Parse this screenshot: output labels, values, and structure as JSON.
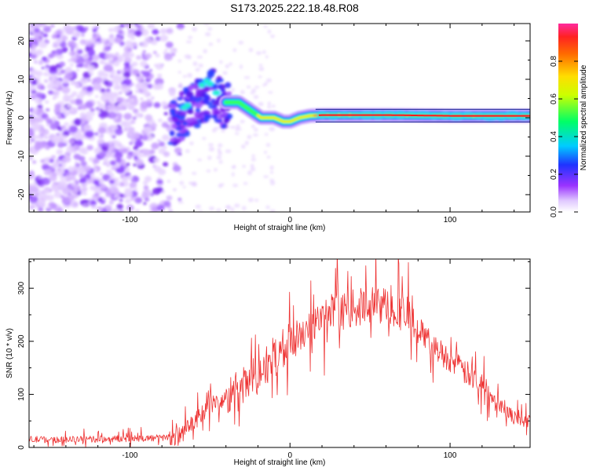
{
  "title": "S173.2025.222.18.48.R08",
  "chart_data": [
    {
      "type": "heatmap",
      "name": "spectrogram",
      "xlabel": "Height of straight line (km)",
      "ylabel": "Frequency (Hz)",
      "xlim": [
        -163,
        150
      ],
      "ylim": [
        -24.5,
        24.5
      ],
      "xticks": [
        -100,
        0,
        100
      ],
      "xtick_labels": [
        "-100",
        "0",
        "100"
      ],
      "yticks": [
        -20,
        -10,
        0,
        10,
        20
      ],
      "ytick_labels": [
        "-20",
        "-10",
        "0",
        "10",
        "20"
      ],
      "colorbar": {
        "label": "Normalized spectral amplitude",
        "ticks": [
          0.0,
          0.2,
          0.4,
          0.6,
          0.8
        ],
        "tick_labels": [
          "0.0",
          "0.2",
          "0.4",
          "0.6",
          "0.8"
        ],
        "range": [
          0,
          1
        ]
      },
      "ridge": [
        {
          "x": -73,
          "y": 0
        },
        {
          "x": -65,
          "y": 3
        },
        {
          "x": -55,
          "y": 6
        },
        {
          "x": -48,
          "y": 8
        },
        {
          "x": -40,
          "y": 4
        },
        {
          "x": -32,
          "y": 4
        },
        {
          "x": -25,
          "y": 2
        },
        {
          "x": -18,
          "y": 0
        },
        {
          "x": -10,
          "y": 0
        },
        {
          "x": -4,
          "y": -1
        },
        {
          "x": 0,
          "y": -1
        },
        {
          "x": 6,
          "y": 0
        },
        {
          "x": 12,
          "y": 0.5
        },
        {
          "x": 20,
          "y": 0.7
        },
        {
          "x": 60,
          "y": 0.7
        },
        {
          "x": 100,
          "y": 0.5
        },
        {
          "x": 150,
          "y": 0.5
        }
      ]
    },
    {
      "type": "line",
      "name": "snr",
      "xlabel": "Height of straight line (km)",
      "ylabel": "SNR (10 * v/v)",
      "xlim": [
        -163,
        150
      ],
      "ylim": [
        0,
        355
      ],
      "xticks": [
        -100,
        0,
        100
      ],
      "xtick_labels": [
        "-100",
        "0",
        "100"
      ],
      "yticks": [
        0,
        100,
        200,
        300
      ],
      "ytick_labels": [
        "0",
        "100",
        "200",
        "300"
      ],
      "color": "#ee3333",
      "envelope": [
        {
          "x": -163,
          "y": 15
        },
        {
          "x": -130,
          "y": 15
        },
        {
          "x": -100,
          "y": 17
        },
        {
          "x": -80,
          "y": 18
        },
        {
          "x": -70,
          "y": 22
        },
        {
          "x": -60,
          "y": 45
        },
        {
          "x": -50,
          "y": 80
        },
        {
          "x": -40,
          "y": 90
        },
        {
          "x": -30,
          "y": 110
        },
        {
          "x": -20,
          "y": 140
        },
        {
          "x": -10,
          "y": 170
        },
        {
          "x": 0,
          "y": 195
        },
        {
          "x": 10,
          "y": 220
        },
        {
          "x": 20,
          "y": 240
        },
        {
          "x": 30,
          "y": 255
        },
        {
          "x": 40,
          "y": 262
        },
        {
          "x": 50,
          "y": 268
        },
        {
          "x": 60,
          "y": 268
        },
        {
          "x": 70,
          "y": 255
        },
        {
          "x": 80,
          "y": 225
        },
        {
          "x": 90,
          "y": 190
        },
        {
          "x": 100,
          "y": 165
        },
        {
          "x": 110,
          "y": 140
        },
        {
          "x": 120,
          "y": 120
        },
        {
          "x": 130,
          "y": 85
        },
        {
          "x": 140,
          "y": 55
        },
        {
          "x": 150,
          "y": 50
        }
      ]
    }
  ]
}
